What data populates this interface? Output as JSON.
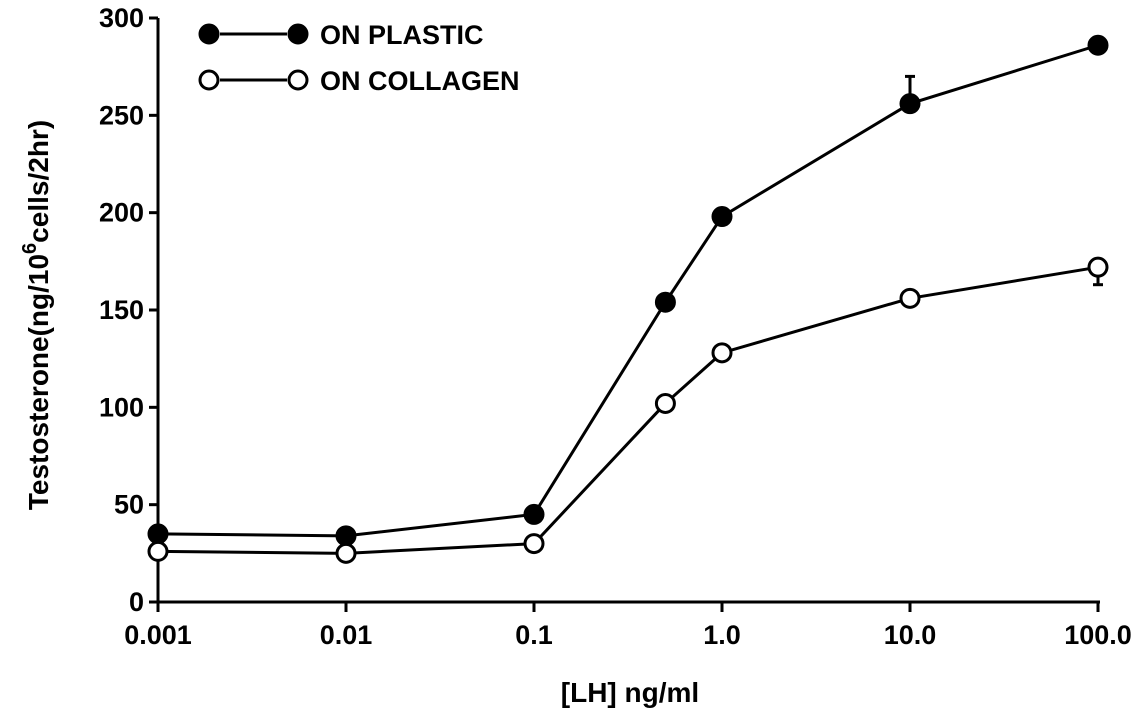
{
  "chart_data": {
    "type": "line",
    "xscale": "log",
    "x": [
      0.001,
      0.01,
      0.1,
      0.5,
      1.0,
      10.0,
      100.0
    ],
    "xticks": [
      0.001,
      0.01,
      0.1,
      1.0,
      10.0,
      100.0
    ],
    "xtick_labels": [
      "0.001",
      "0.01",
      "0.1",
      "1.0",
      "10.0",
      "100.0"
    ],
    "yticks": [
      0,
      50,
      100,
      150,
      200,
      250,
      300
    ],
    "ytick_labels": [
      "0",
      "50",
      "100",
      "150",
      "200",
      "250",
      "300"
    ],
    "ylim": [
      0,
      300
    ],
    "xlabel": "[LH] ng/ml",
    "ylabel_main": "Testosterone(ng/10",
    "ylabel_sup": "6",
    "ylabel_tail": "cells/2hr)",
    "legend_position": "top-left",
    "grid": false,
    "series": [
      {
        "name": "ON PLASTIC",
        "marker": "filled-circle",
        "color": "#000000",
        "values": [
          35,
          34,
          45,
          154,
          198,
          256,
          286
        ],
        "error_bar_at_x": 10.0,
        "error_bar_top": 270
      },
      {
        "name": "ON COLLAGEN",
        "marker": "open-circle",
        "color": "#000000",
        "values": [
          26,
          25,
          30,
          102,
          128,
          156,
          172
        ],
        "error_bar_at_x": 100.0,
        "error_bar_top": 163
      }
    ]
  }
}
